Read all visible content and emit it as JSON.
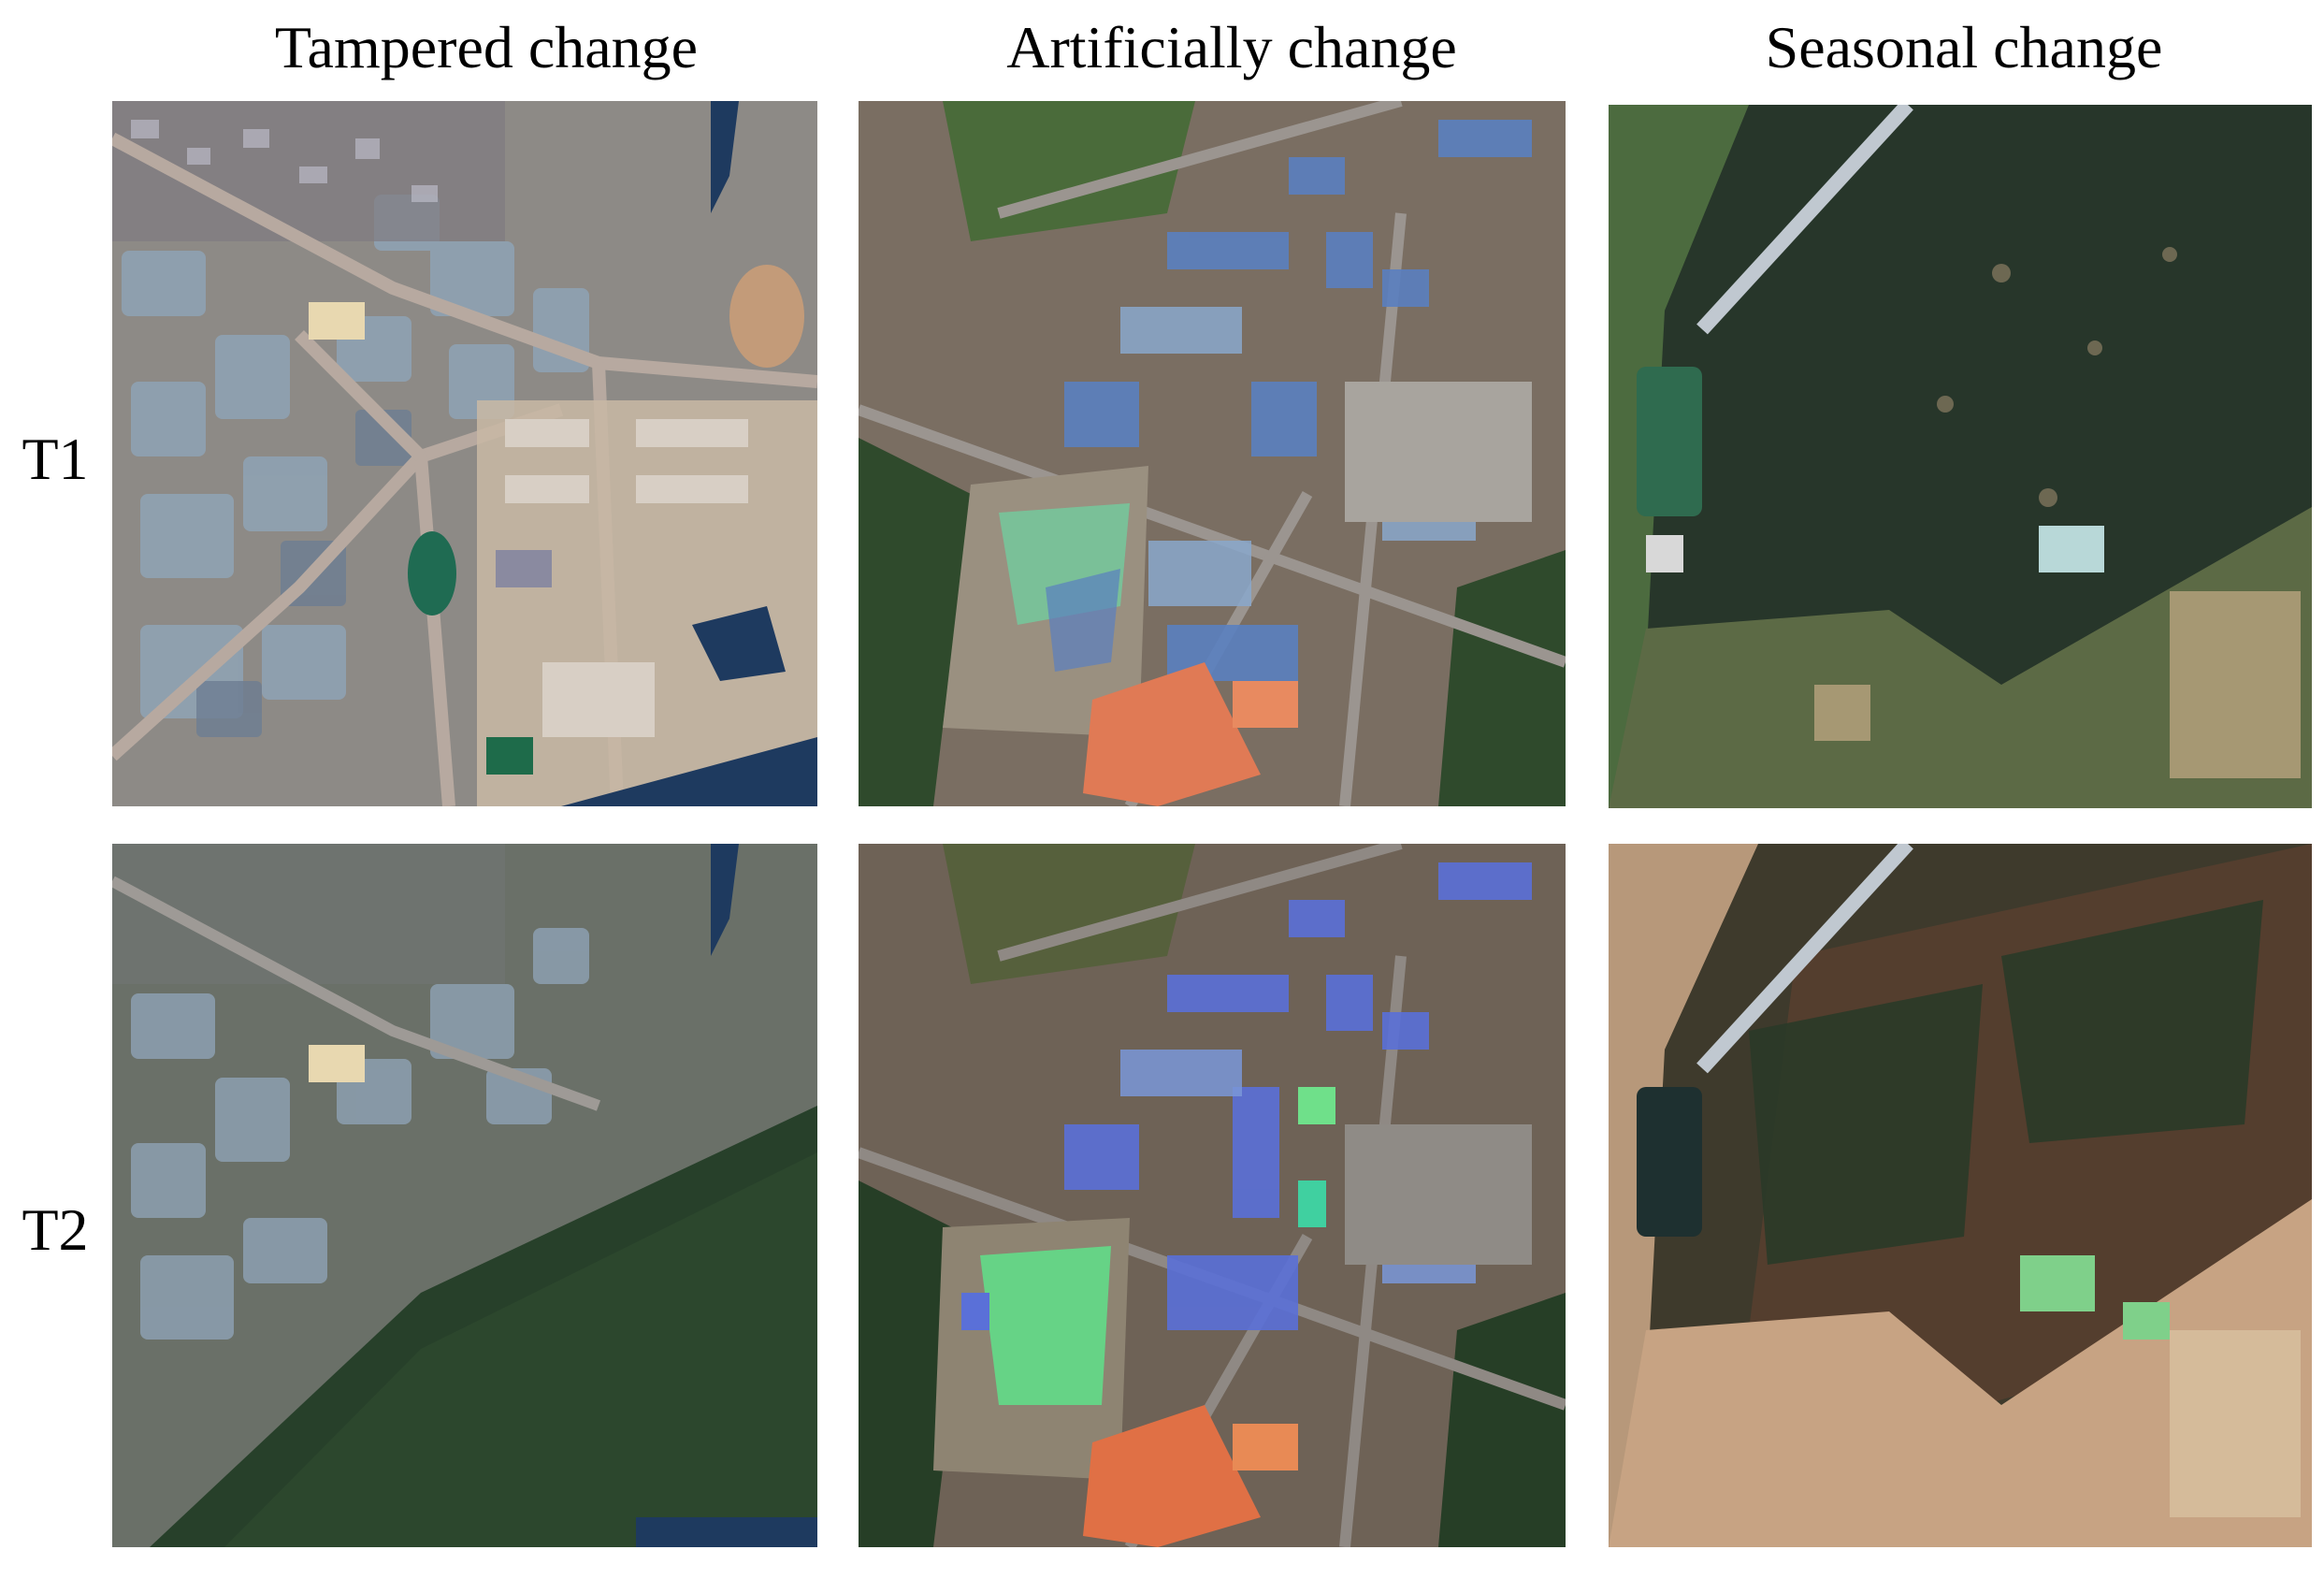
{
  "columns": [
    {
      "id": "tampered",
      "title": "Tampered change"
    },
    {
      "id": "artificial",
      "title": "Artificially change"
    },
    {
      "id": "seasonal",
      "title": "Seasonal change"
    }
  ],
  "rows": [
    {
      "id": "t1",
      "label": "T1"
    },
    {
      "id": "t2",
      "label": "T2"
    }
  ],
  "colors": {
    "forest_dark": "#27362a",
    "forest_mid": "#364a33",
    "greenhouse": "#8fa3b5",
    "road": "#b7a9a0",
    "urban_soil": "#c9b9a5",
    "water": "#1e3a5f",
    "orange_roof": "#e07a55",
    "blue_roof": "#5a7fc0",
    "bright_green": "#5fe08a",
    "dry_soil": "#c7a383",
    "brown_forest": "#5a4030"
  }
}
